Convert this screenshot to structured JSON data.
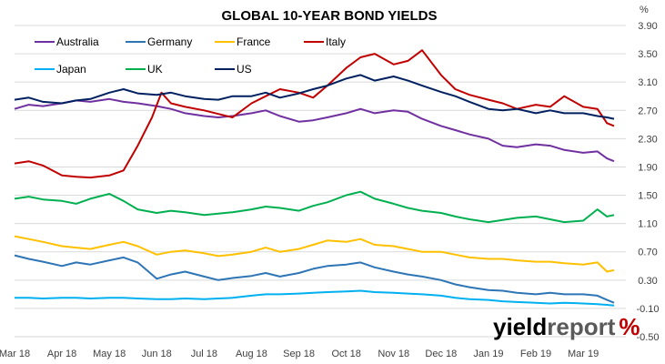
{
  "chart_data": {
    "type": "line",
    "title": "GLOBAL 10-YEAR BOND YIELDS",
    "ylabel": "%",
    "xlabel": "",
    "ylim": [
      -0.5,
      3.9
    ],
    "y_ticks": [
      "3.90",
      "3.50",
      "3.10",
      "2.70",
      "2.30",
      "1.90",
      "1.50",
      "1.10",
      "0.70",
      "0.30",
      "-0.10",
      "-0.50"
    ],
    "x_ticks": [
      "Mar 18",
      "Apr 18",
      "May 18",
      "Jun 18",
      "Jul 18",
      "Aug 18",
      "Sep 18",
      "Oct 18",
      "Nov 18",
      "Dec 18",
      "Jan 19",
      "Feb 19",
      "Mar 19"
    ],
    "x_domain": [
      0,
      12.9
    ],
    "grid": "horizontal",
    "legend_position": "top-left",
    "series": [
      {
        "name": "Australia",
        "color": "#7030a0",
        "x": [
          0,
          0.3,
          0.6,
          1,
          1.3,
          1.6,
          2,
          2.3,
          2.6,
          3,
          3.3,
          3.6,
          4,
          4.3,
          4.6,
          5,
          5.3,
          5.6,
          6,
          6.3,
          6.6,
          7,
          7.3,
          7.6,
          8,
          8.3,
          8.6,
          9,
          9.3,
          9.6,
          10,
          10.3,
          10.6,
          11,
          11.3,
          11.6,
          12,
          12.3,
          12.5,
          12.65
        ],
        "y": [
          2.72,
          2.78,
          2.76,
          2.8,
          2.84,
          2.82,
          2.86,
          2.82,
          2.8,
          2.76,
          2.72,
          2.66,
          2.62,
          2.6,
          2.62,
          2.66,
          2.7,
          2.62,
          2.54,
          2.56,
          2.6,
          2.66,
          2.72,
          2.66,
          2.7,
          2.68,
          2.58,
          2.48,
          2.42,
          2.36,
          2.3,
          2.2,
          2.18,
          2.22,
          2.2,
          2.14,
          2.1,
          2.12,
          2.02,
          1.98
        ]
      },
      {
        "name": "Germany",
        "color": "#2e75b6",
        "x": [
          0,
          0.3,
          0.6,
          1,
          1.3,
          1.6,
          2,
          2.3,
          2.6,
          3,
          3.3,
          3.6,
          4,
          4.3,
          4.6,
          5,
          5.3,
          5.6,
          6,
          6.3,
          6.6,
          7,
          7.3,
          7.6,
          8,
          8.3,
          8.6,
          9,
          9.3,
          9.6,
          10,
          10.3,
          10.6,
          11,
          11.3,
          11.6,
          12,
          12.3,
          12.5,
          12.65
        ],
        "y": [
          0.65,
          0.6,
          0.56,
          0.5,
          0.55,
          0.52,
          0.58,
          0.62,
          0.55,
          0.32,
          0.38,
          0.42,
          0.35,
          0.3,
          0.33,
          0.36,
          0.4,
          0.35,
          0.4,
          0.46,
          0.5,
          0.52,
          0.55,
          0.48,
          0.42,
          0.38,
          0.35,
          0.3,
          0.24,
          0.2,
          0.16,
          0.15,
          0.12,
          0.1,
          0.12,
          0.1,
          0.1,
          0.08,
          0.02,
          -0.02
        ]
      },
      {
        "name": "France",
        "color": "#ffc000",
        "x": [
          0,
          0.3,
          0.6,
          1,
          1.3,
          1.6,
          2,
          2.3,
          2.6,
          3,
          3.3,
          3.6,
          4,
          4.3,
          4.6,
          5,
          5.3,
          5.6,
          6,
          6.3,
          6.6,
          7,
          7.3,
          7.6,
          8,
          8.3,
          8.6,
          9,
          9.3,
          9.6,
          10,
          10.3,
          10.6,
          11,
          11.3,
          11.6,
          12,
          12.3,
          12.5,
          12.65
        ],
        "y": [
          0.92,
          0.88,
          0.84,
          0.78,
          0.76,
          0.74,
          0.8,
          0.84,
          0.78,
          0.66,
          0.7,
          0.72,
          0.68,
          0.64,
          0.66,
          0.7,
          0.76,
          0.7,
          0.74,
          0.8,
          0.86,
          0.84,
          0.88,
          0.8,
          0.78,
          0.74,
          0.7,
          0.7,
          0.66,
          0.62,
          0.6,
          0.6,
          0.58,
          0.56,
          0.56,
          0.54,
          0.52,
          0.55,
          0.42,
          0.44
        ]
      },
      {
        "name": "Italy",
        "color": "#c00000",
        "x": [
          0,
          0.3,
          0.6,
          1,
          1.3,
          1.6,
          2,
          2.3,
          2.6,
          2.9,
          3.1,
          3.3,
          3.6,
          4,
          4.3,
          4.6,
          5,
          5.3,
          5.6,
          6,
          6.3,
          6.6,
          7,
          7.3,
          7.6,
          8,
          8.3,
          8.6,
          9,
          9.3,
          9.6,
          10,
          10.3,
          10.6,
          11,
          11.3,
          11.6,
          12,
          12.3,
          12.5,
          12.65
        ],
        "y": [
          1.95,
          1.98,
          1.92,
          1.78,
          1.76,
          1.75,
          1.78,
          1.85,
          2.2,
          2.6,
          2.95,
          2.8,
          2.75,
          2.7,
          2.65,
          2.6,
          2.8,
          2.9,
          3.0,
          2.95,
          2.88,
          3.05,
          3.3,
          3.45,
          3.5,
          3.35,
          3.4,
          3.55,
          3.2,
          3.0,
          2.92,
          2.85,
          2.8,
          2.72,
          2.78,
          2.75,
          2.9,
          2.75,
          2.72,
          2.52,
          2.48
        ]
      },
      {
        "name": "Japan",
        "color": "#00b0f0",
        "x": [
          0,
          0.3,
          0.6,
          1,
          1.3,
          1.6,
          2,
          2.3,
          2.6,
          3,
          3.3,
          3.6,
          4,
          4.3,
          4.6,
          5,
          5.3,
          5.6,
          6,
          6.3,
          6.6,
          7,
          7.3,
          7.6,
          8,
          8.3,
          8.6,
          9,
          9.3,
          9.6,
          10,
          10.3,
          10.6,
          11,
          11.3,
          11.6,
          12,
          12.3,
          12.5,
          12.65
        ],
        "y": [
          0.05,
          0.05,
          0.04,
          0.05,
          0.05,
          0.04,
          0.05,
          0.05,
          0.04,
          0.03,
          0.03,
          0.04,
          0.03,
          0.04,
          0.05,
          0.08,
          0.1,
          0.1,
          0.11,
          0.12,
          0.13,
          0.14,
          0.15,
          0.13,
          0.12,
          0.11,
          0.1,
          0.08,
          0.05,
          0.03,
          0.02,
          0.0,
          -0.01,
          -0.02,
          -0.03,
          -0.02,
          -0.03,
          -0.04,
          -0.05,
          -0.06
        ]
      },
      {
        "name": "UK",
        "color": "#00b050",
        "x": [
          0,
          0.3,
          0.6,
          1,
          1.3,
          1.6,
          2,
          2.3,
          2.6,
          3,
          3.3,
          3.6,
          4,
          4.3,
          4.6,
          5,
          5.3,
          5.6,
          6,
          6.3,
          6.6,
          7,
          7.3,
          7.6,
          8,
          8.3,
          8.6,
          9,
          9.3,
          9.6,
          10,
          10.3,
          10.6,
          11,
          11.3,
          11.6,
          12,
          12.3,
          12.5,
          12.65
        ],
        "y": [
          1.45,
          1.48,
          1.44,
          1.42,
          1.38,
          1.45,
          1.52,
          1.42,
          1.3,
          1.25,
          1.28,
          1.26,
          1.22,
          1.24,
          1.26,
          1.3,
          1.34,
          1.32,
          1.28,
          1.35,
          1.4,
          1.5,
          1.55,
          1.45,
          1.38,
          1.32,
          1.28,
          1.25,
          1.2,
          1.16,
          1.12,
          1.15,
          1.18,
          1.2,
          1.16,
          1.12,
          1.14,
          1.3,
          1.2,
          1.22
        ]
      },
      {
        "name": "US",
        "color": "#002060",
        "x": [
          0,
          0.3,
          0.6,
          1,
          1.3,
          1.6,
          2,
          2.3,
          2.6,
          3,
          3.3,
          3.6,
          4,
          4.3,
          4.6,
          5,
          5.3,
          5.6,
          6,
          6.3,
          6.6,
          7,
          7.3,
          7.6,
          8,
          8.3,
          8.6,
          9,
          9.3,
          9.6,
          10,
          10.3,
          10.6,
          11,
          11.3,
          11.6,
          12,
          12.3,
          12.5,
          12.65
        ],
        "y": [
          2.85,
          2.88,
          2.82,
          2.8,
          2.84,
          2.86,
          2.95,
          3.0,
          2.94,
          2.92,
          2.95,
          2.9,
          2.86,
          2.85,
          2.9,
          2.9,
          2.95,
          2.88,
          2.94,
          3.0,
          3.05,
          3.15,
          3.2,
          3.12,
          3.18,
          3.12,
          3.05,
          2.96,
          2.9,
          2.82,
          2.72,
          2.7,
          2.72,
          2.66,
          2.7,
          2.66,
          2.66,
          2.62,
          2.6,
          2.58
        ]
      }
    ]
  },
  "brand": {
    "name_main": "yield",
    "name_rest": "report",
    "symbol": "%"
  }
}
